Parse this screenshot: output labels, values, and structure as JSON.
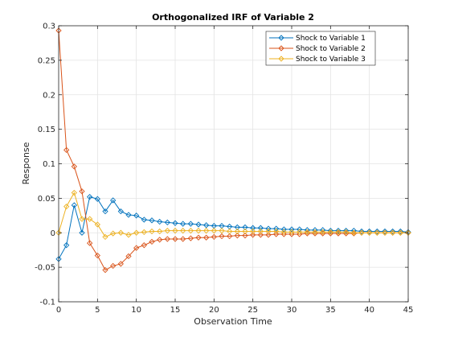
{
  "chart_data": {
    "type": "line",
    "title": "Orthogonalized IRF of Variable 2",
    "xlabel": "Observation Time",
    "ylabel": "Response",
    "xlim": [
      0,
      45
    ],
    "ylim": [
      -0.1,
      0.3
    ],
    "xticks": [
      0,
      5,
      10,
      15,
      20,
      25,
      30,
      35,
      40,
      45
    ],
    "yticks": [
      -0.1,
      -0.05,
      0,
      0.05,
      0.1,
      0.15,
      0.2,
      0.25,
      0.3
    ],
    "xtick_labels": [
      "0",
      "5",
      "10",
      "15",
      "20",
      "25",
      "30",
      "35",
      "40",
      "45"
    ],
    "ytick_labels": [
      "-0.1",
      "-0.05",
      "0",
      "0.05",
      "0.1",
      "0.15",
      "0.2",
      "0.25",
      "0.3"
    ],
    "grid": true,
    "legend_position": "top-right",
    "x": [
      0,
      1,
      2,
      3,
      4,
      5,
      6,
      7,
      8,
      9,
      10,
      11,
      12,
      13,
      14,
      15,
      16,
      17,
      18,
      19,
      20,
      21,
      22,
      23,
      24,
      25,
      26,
      27,
      28,
      29,
      30,
      31,
      32,
      33,
      34,
      35,
      36,
      37,
      38,
      39,
      40,
      41,
      42,
      43,
      44,
      45
    ],
    "series": [
      {
        "name": "Shock to Variable 1",
        "color": "#0072BD",
        "values": [
          -0.038,
          -0.018,
          0.04,
          0.0,
          0.052,
          0.049,
          0.031,
          0.047,
          0.031,
          0.026,
          0.025,
          0.019,
          0.018,
          0.016,
          0.015,
          0.014,
          0.013,
          0.013,
          0.012,
          0.011,
          0.01,
          0.01,
          0.009,
          0.008,
          0.008,
          0.007,
          0.007,
          0.006,
          0.006,
          0.005,
          0.005,
          0.005,
          0.004,
          0.004,
          0.004,
          0.003,
          0.003,
          0.003,
          0.003,
          0.002,
          0.002,
          0.002,
          0.002,
          0.002,
          0.002,
          0.001
        ]
      },
      {
        "name": "Shock to Variable 2",
        "color": "#D95319",
        "values": [
          0.293,
          0.12,
          0.096,
          0.06,
          -0.015,
          -0.033,
          -0.054,
          -0.048,
          -0.045,
          -0.034,
          -0.022,
          -0.018,
          -0.013,
          -0.01,
          -0.009,
          -0.009,
          -0.009,
          -0.008,
          -0.007,
          -0.007,
          -0.006,
          -0.005,
          -0.005,
          -0.004,
          -0.004,
          -0.003,
          -0.003,
          -0.003,
          -0.002,
          -0.002,
          -0.002,
          -0.002,
          -0.001,
          -0.001,
          -0.001,
          -0.001,
          -0.001,
          -0.001,
          -0.001,
          0.0,
          0.0,
          0.0,
          0.0,
          0.0,
          0.0,
          0.0
        ]
      },
      {
        "name": "Shock to Variable 3",
        "color": "#EDB120",
        "values": [
          0.0,
          0.038,
          0.058,
          0.02,
          0.02,
          0.012,
          -0.006,
          -0.001,
          0.0,
          -0.003,
          0.0,
          0.001,
          0.002,
          0.002,
          0.003,
          0.003,
          0.003,
          0.003,
          0.003,
          0.003,
          0.003,
          0.003,
          0.002,
          0.002,
          0.002,
          0.002,
          0.002,
          0.002,
          0.002,
          0.001,
          0.001,
          0.001,
          0.001,
          0.001,
          0.001,
          0.001,
          0.001,
          0.001,
          0.0,
          0.0,
          0.0,
          0.0,
          0.0,
          0.0,
          0.0,
          0.0
        ]
      }
    ]
  }
}
